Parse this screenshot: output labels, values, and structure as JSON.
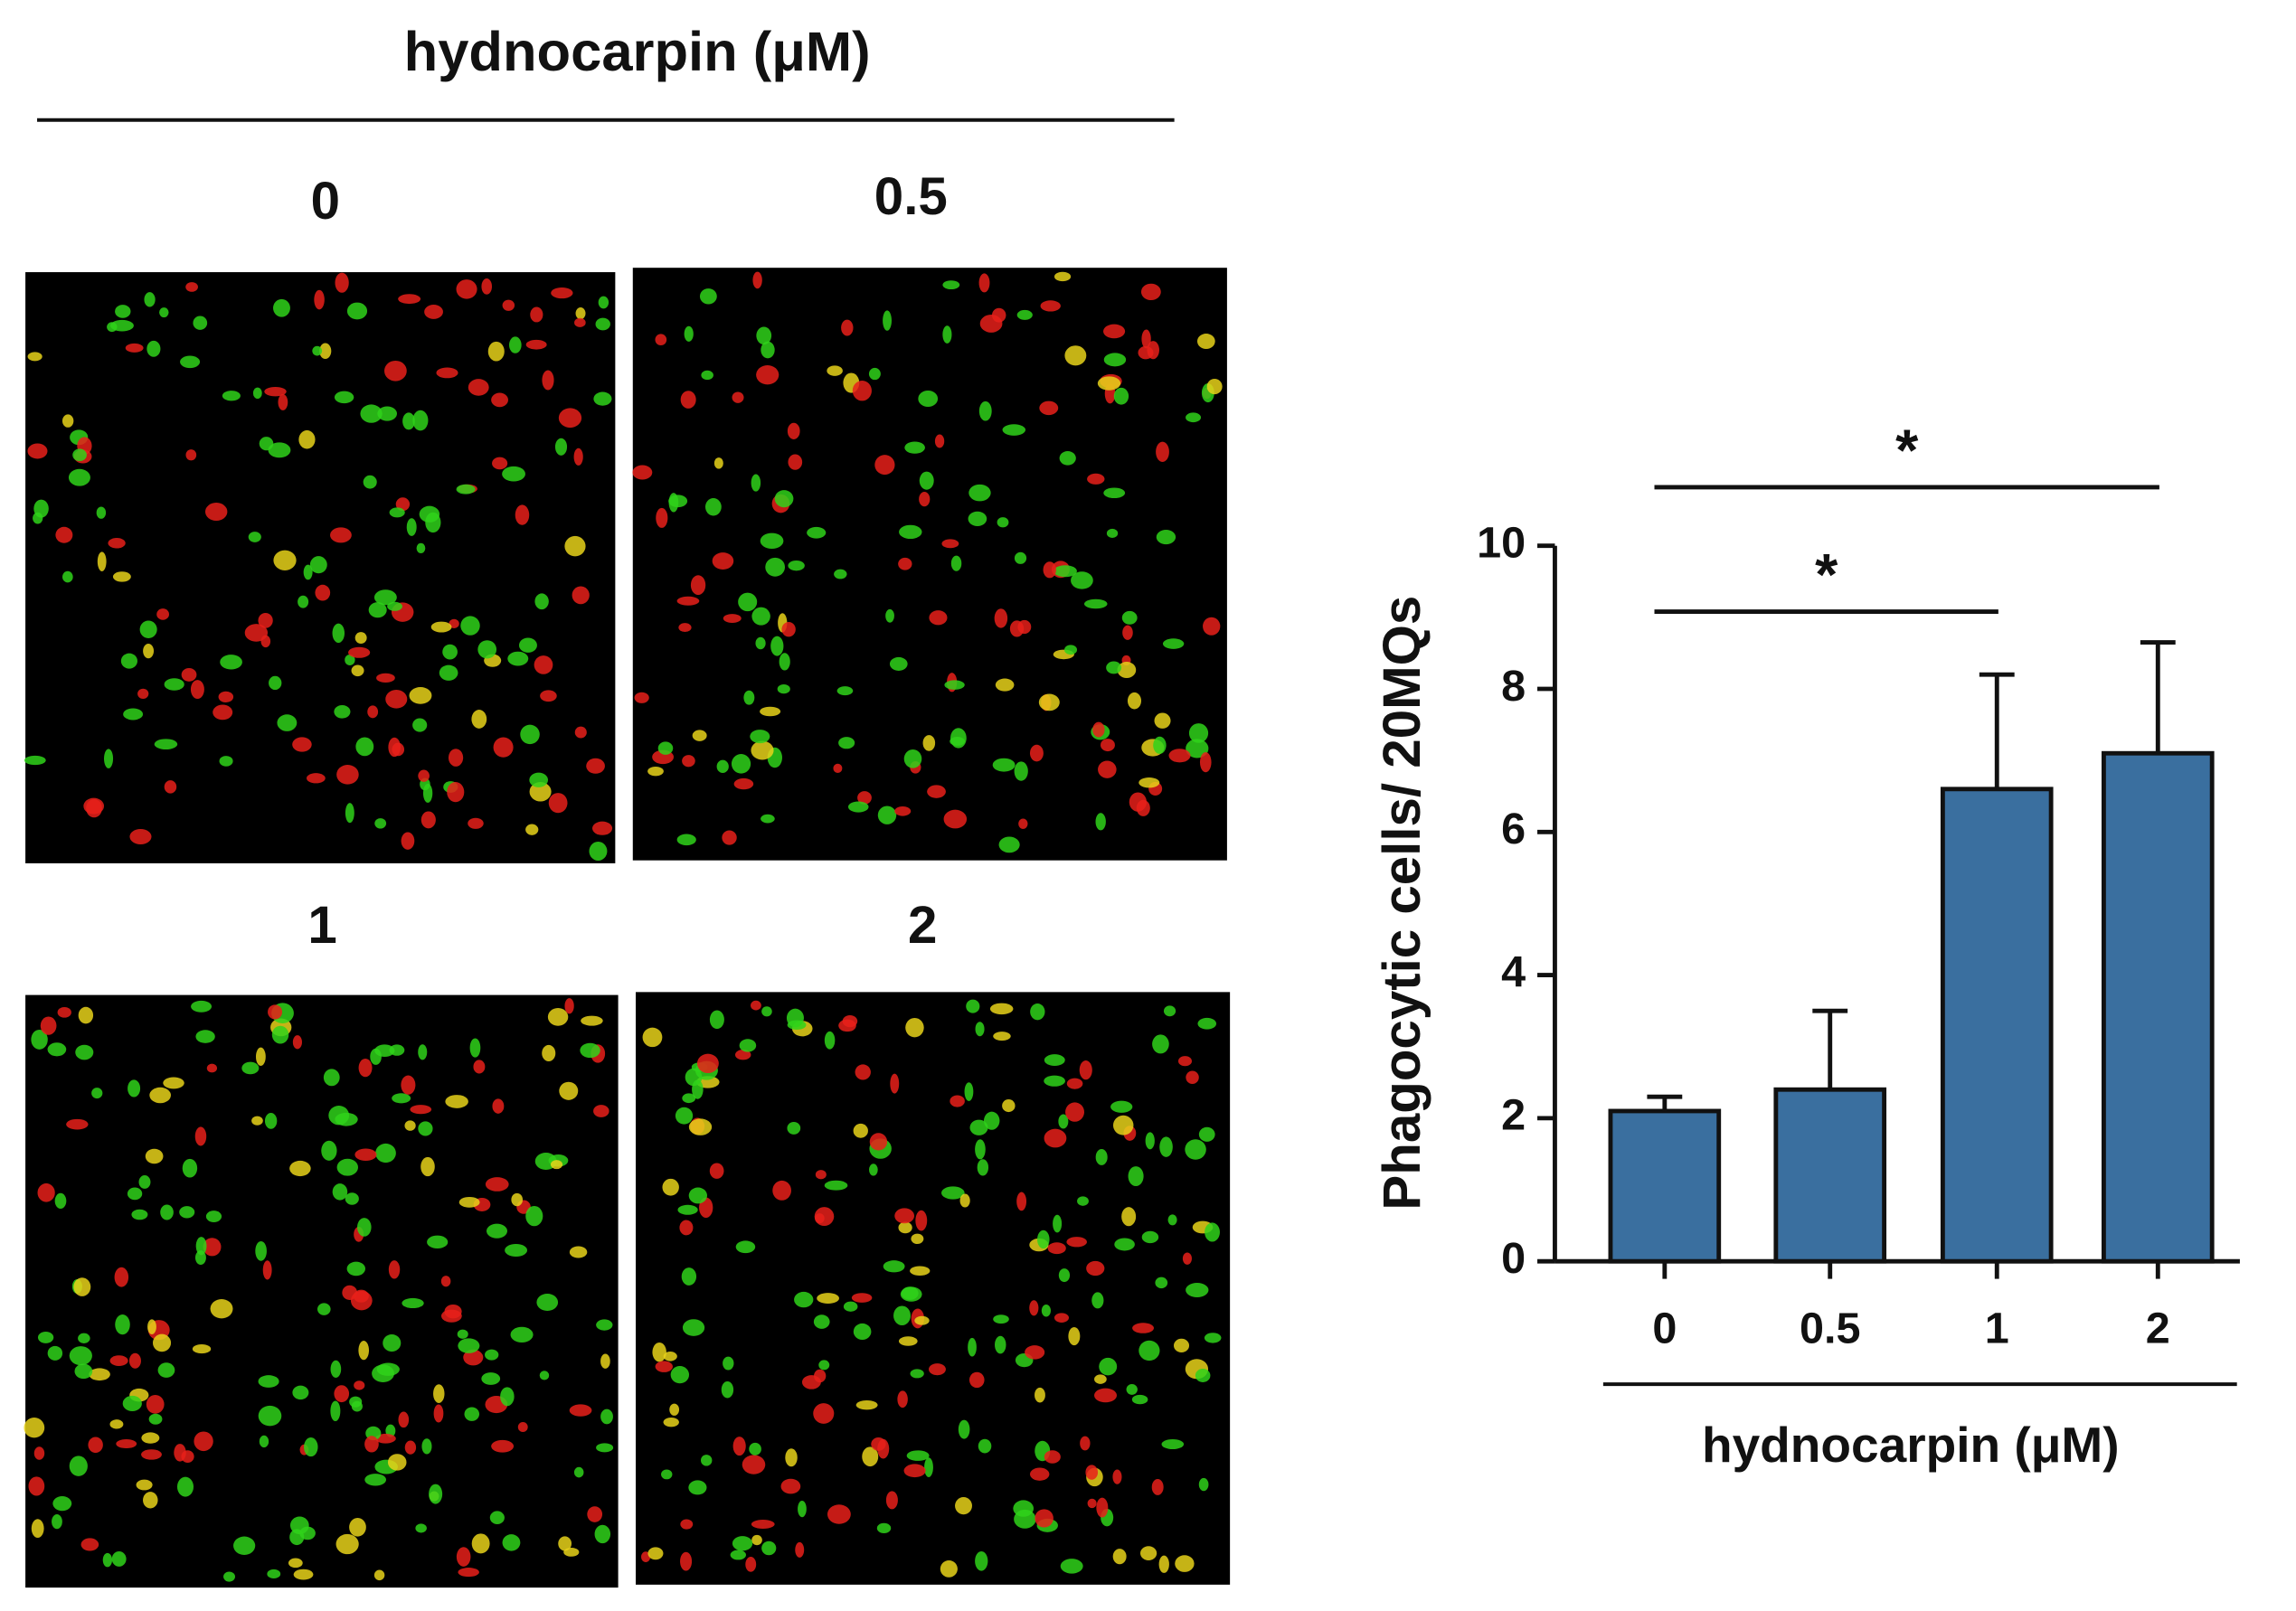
{
  "panel_a": {
    "title": "hydnocarpin (μM)",
    "labels": [
      "0",
      "0.5",
      "1",
      "2"
    ]
  },
  "chart_data": {
    "type": "bar",
    "categories": [
      "0",
      "0.5",
      "1",
      "2"
    ],
    "values": [
      2.1,
      2.4,
      6.6,
      7.1
    ],
    "errors": [
      0.2,
      1.1,
      1.6,
      1.55
    ],
    "color": "#3a6f9f",
    "ylim": [
      0,
      10
    ],
    "yticks": [
      0,
      2,
      4,
      6,
      8,
      10
    ],
    "ylabel": "Phagocytic cells/ 20MQs",
    "xlabel": "hydnocarpin (μM)",
    "significance": [
      {
        "label": "*",
        "between": [
          "0",
          "1"
        ]
      },
      {
        "label": "*",
        "between": [
          "0",
          "2"
        ]
      }
    ]
  }
}
